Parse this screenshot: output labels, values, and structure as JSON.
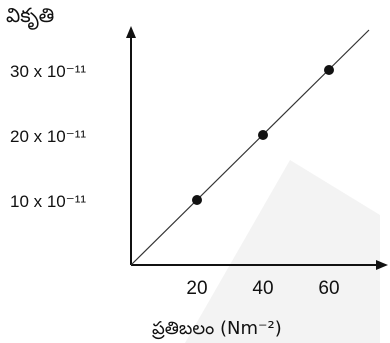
{
  "chart_data": {
    "type": "scatter",
    "title": "",
    "xlabel": "ప్రతిబలం (Nm⁻²)",
    "ylabel": "వికృతి",
    "x_ticks": [
      "20",
      "40",
      "60"
    ],
    "y_ticks": [
      "10 x 10⁻¹¹",
      "20 x 10⁻¹¹",
      "30 x 10⁻¹¹"
    ],
    "xlim": [
      0,
      75
    ],
    "ylim": [
      0,
      36
    ],
    "series": [
      {
        "x": [
          20,
          40,
          60
        ],
        "y": [
          10,
          20,
          30
        ]
      }
    ],
    "fit_line": {
      "x": [
        0,
        75
      ],
      "y": [
        0,
        37.5
      ]
    },
    "grid": false,
    "legend": "none"
  },
  "colors": {
    "axis": "#111111",
    "point": "#111111",
    "line": "#333333",
    "watermark": "#f1f1f1"
  }
}
